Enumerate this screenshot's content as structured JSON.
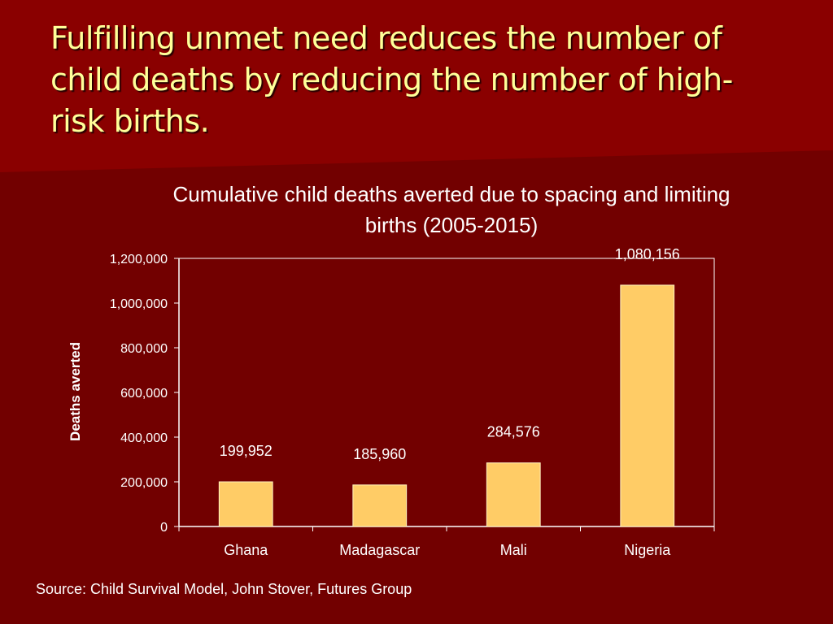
{
  "slide": {
    "title": "Fulfilling unmet need reduces the number of child deaths by reducing the number of high-risk births.",
    "source": "Source: Child Survival Model,  John Stover, Futures Group"
  },
  "colors": {
    "background": "#720000",
    "header_band": "#8a0000",
    "title_text": "#ffff99",
    "bar_fill": "#ffcc66",
    "bar_stroke": "#fff2c0",
    "text": "#ffffff",
    "axis": "#ffffff"
  },
  "chart_data": {
    "type": "bar",
    "title": "Cumulative child deaths averted due to spacing and limiting births (2005-2015)",
    "xlabel": "",
    "ylabel": "Deaths averted",
    "categories": [
      "Ghana",
      "Madagascar",
      "Mali",
      "Nigeria"
    ],
    "values": [
      199952,
      185960,
      284576,
      1080156
    ],
    "data_labels": [
      "199,952",
      "185,960",
      "284,576",
      "1,080,156"
    ],
    "ylim": [
      0,
      1200000
    ],
    "yticks": [
      0,
      200000,
      400000,
      600000,
      800000,
      1000000,
      1200000
    ],
    "ytick_labels": [
      "0",
      "200,000",
      "400,000",
      "600,000",
      "800,000",
      "1,000,000",
      "1,200,000"
    ],
    "grid": false,
    "legend": "none"
  }
}
